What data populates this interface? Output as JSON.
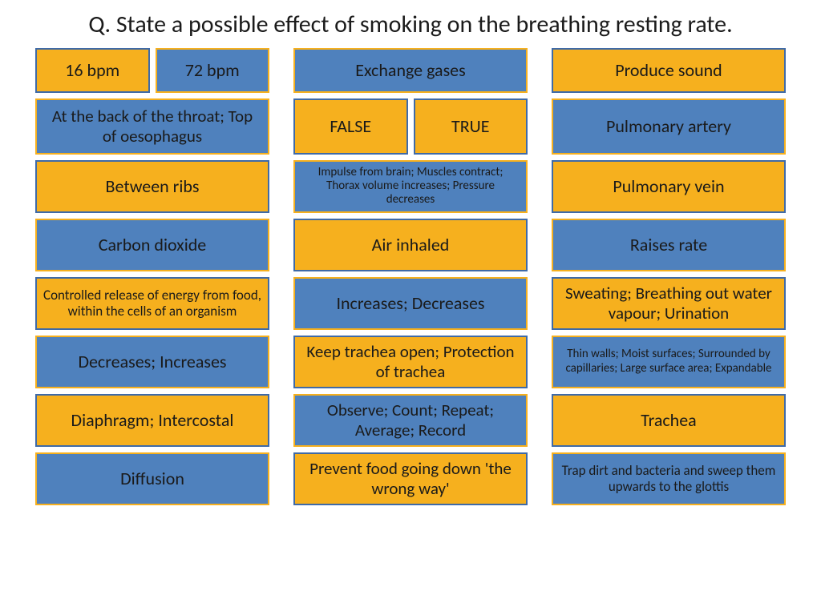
{
  "title": "Q. State a possible effect of smoking on the breathing resting rate.",
  "colors": {
    "orange_fill": "#f6b01e",
    "orange_border": "#3f6aa7",
    "blue_fill": "#4f81bd",
    "blue_border": "#f6b01e"
  },
  "columns": [
    {
      "cells": [
        {
          "type": "split",
          "a": "16 bpm",
          "b": "72 bpm",
          "a_style": "orange",
          "b_style": "blue",
          "fs": "fs-xl"
        },
        {
          "text": "At the back of the throat; Top of oesophagus",
          "style": "blue",
          "fs": "fs-l",
          "h": "r1"
        },
        {
          "text": "Between ribs",
          "style": "orange",
          "fs": "fs-xl"
        },
        {
          "text": "Carbon dioxide",
          "style": "blue",
          "fs": "fs-xl"
        },
        {
          "text": "Controlled release of energy from food, within the cells of an organism",
          "style": "orange",
          "fs": "fs-s"
        },
        {
          "text": "Decreases; Increases",
          "style": "blue",
          "fs": "fs-xl"
        },
        {
          "text": "Diaphragm; Intercostal",
          "style": "orange",
          "fs": "fs-xl"
        },
        {
          "text": "Diffusion",
          "style": "blue",
          "fs": "fs-xl"
        }
      ]
    },
    {
      "cells": [
        {
          "text": "Exchange gases",
          "style": "blue",
          "fs": "fs-xl",
          "h": "r0"
        },
        {
          "type": "split",
          "a": "FALSE",
          "b": "TRUE",
          "a_style": "orange",
          "b_style": "orange",
          "fs": "fs-xl",
          "h": "r1"
        },
        {
          "text": "Impulse from brain; Muscles contract; Thorax volume increases; Pressure decreases",
          "style": "blue",
          "fs": "fs-xs"
        },
        {
          "text": "Air inhaled",
          "style": "orange",
          "fs": "fs-xl"
        },
        {
          "text": "Increases; Decreases",
          "style": "blue",
          "fs": "fs-xl"
        },
        {
          "text": "Keep trachea open; Protection of trachea",
          "style": "orange",
          "fs": "fs-l"
        },
        {
          "text": "Observe; Count; Repeat; Average; Record",
          "style": "blue",
          "fs": "fs-l"
        },
        {
          "text": "Prevent food going down 'the wrong way'",
          "style": "orange",
          "fs": "fs-l"
        }
      ]
    },
    {
      "cells": [
        {
          "text": "Produce sound",
          "style": "orange",
          "fs": "fs-xl",
          "h": "r0"
        },
        {
          "text": "Pulmonary artery",
          "style": "blue",
          "fs": "fs-xl",
          "h": "r1"
        },
        {
          "text": "Pulmonary vein",
          "style": "orange",
          "fs": "fs-xl"
        },
        {
          "text": "Raises rate",
          "style": "blue",
          "fs": "fs-xl"
        },
        {
          "text": "Sweating; Breathing out water vapour; Urination",
          "style": "orange",
          "fs": "fs-l"
        },
        {
          "text": "Thin walls; Moist surfaces; Surrounded by capillaries; Large surface area; Expandable",
          "style": "blue",
          "fs": "fs-xs"
        },
        {
          "text": "Trachea",
          "style": "orange",
          "fs": "fs-xl"
        },
        {
          "text": "Trap dirt and bacteria and sweep them upwards to the glottis",
          "style": "blue",
          "fs": "fs-s"
        }
      ]
    }
  ]
}
